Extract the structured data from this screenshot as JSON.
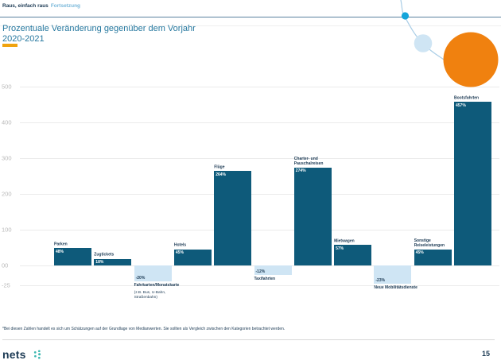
{
  "header": {
    "breadcrumb_main": "Raus, einfach raus",
    "breadcrumb_continuation": "Fortsetzung"
  },
  "title": {
    "line1": "Prozentuale Veränderung gegenüber dem Vorjahr",
    "line2": "2020-2021"
  },
  "chart_data": {
    "type": "bar",
    "title": "Prozentuale Veränderung gegenüber dem Vorjahr 2020-2021",
    "xlabel": "",
    "ylabel": "",
    "ylim": [
      -25,
      500
    ],
    "grid": true,
    "ytick_labels": [
      "500",
      "400",
      "300",
      "200",
      "100",
      "00",
      "-25"
    ],
    "ytick_values": [
      500,
      400,
      300,
      200,
      100,
      0,
      -25
    ],
    "categories": [
      "Parken",
      "Zugtickets",
      "Fahrkarten/Monatskarte",
      "Hotels",
      "Flüge",
      "Taxifahrten",
      "Charter- und Pauschalreisen",
      "Mietwagen",
      "Neue Mobilitätsdienste",
      "Sonstige Reiseleistungen",
      "Bootsfahrten"
    ],
    "values": [
      48,
      18,
      -20,
      45,
      264,
      -12,
      274,
      57,
      -23,
      45,
      457
    ],
    "value_labels": [
      "48%",
      "18%",
      "-20%",
      "45%",
      "264%",
      "-12%",
      "274%",
      "57%",
      "-23%",
      "45%",
      "457%"
    ],
    "sublabels": {
      "2": "(z.B. Bus, U-Bahn, Straßenbahn)"
    }
  },
  "footnote": "*Bei diesen Zahlen handelt es sich um Schätzungen auf der Grundlage von Medianwerten. Sie sollten als Vergleich zwischen den Kategorien betrachtet werden.",
  "footer": {
    "logo_text": "nets",
    "page_number": "15"
  },
  "colors": {
    "bar_positive": "#0e5a7a",
    "bar_negative": "#cfe5f4",
    "accent_orange": "#f0a30f",
    "deco_orange": "#f0810f",
    "deco_cyan": "#14a5da",
    "deco_lightblue": "#cfe5f4",
    "title_blue": "#26789f",
    "navy_text": "#1c3a54",
    "logo_teal": "#3cb7b0",
    "header_rule": "#5b82a0"
  }
}
